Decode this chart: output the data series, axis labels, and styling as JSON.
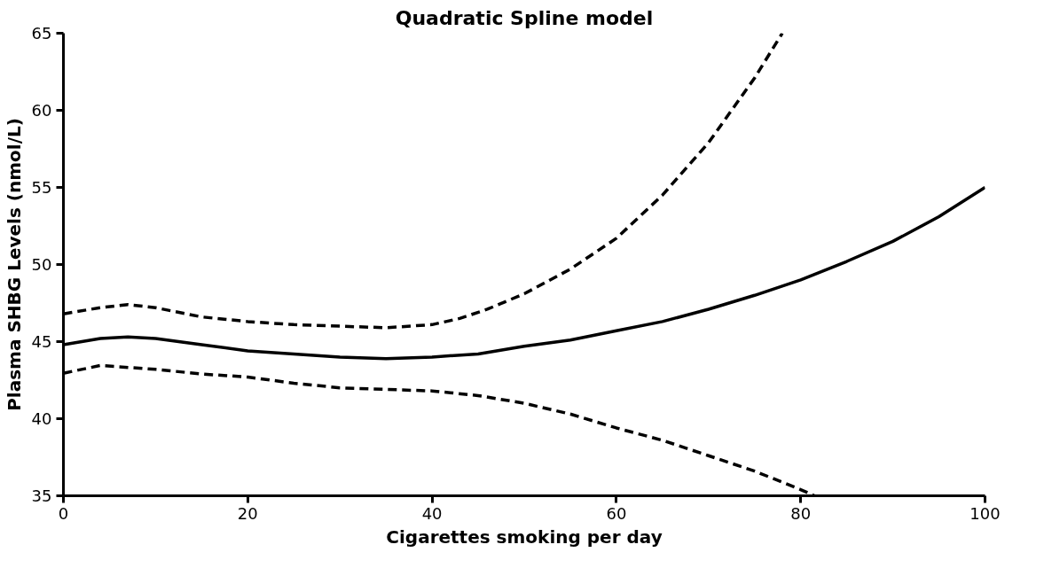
{
  "chart_data": {
    "type": "line",
    "title": "Quadratic Spline model",
    "xlabel": "Cigarettes smoking per day",
    "ylabel": "Plasma SHBG Levels (nmol/L)",
    "xlim": [
      0,
      100
    ],
    "ylim": [
      35,
      65
    ],
    "xticks": [
      0,
      20,
      40,
      60,
      80,
      100
    ],
    "yticks": [
      35,
      40,
      45,
      50,
      55,
      60,
      65
    ],
    "grid": false,
    "marker": "none",
    "series": [
      {
        "color": "#000000",
        "line_style": "solid",
        "x": [
          0,
          4,
          7,
          10,
          15,
          20,
          25,
          30,
          35,
          40,
          45,
          50,
          55,
          60,
          65,
          70,
          75,
          80,
          85,
          90,
          95,
          100
        ],
        "values": [
          44.8,
          45.2,
          45.3,
          45.2,
          44.8,
          44.4,
          44.2,
          44.0,
          43.9,
          44.0,
          44.2,
          44.7,
          45.1,
          45.7,
          46.3,
          47.1,
          48.0,
          49.0,
          50.2,
          51.5,
          53.1,
          55.0
        ]
      },
      {
        "color": "#000000",
        "line_style": "dashed",
        "x": [
          0,
          4,
          7,
          10,
          15,
          20,
          25,
          30,
          35,
          40,
          43,
          46,
          50,
          55,
          60,
          65,
          70,
          75,
          78
        ],
        "values": [
          46.8,
          47.2,
          47.4,
          47.2,
          46.6,
          46.3,
          46.1,
          46.0,
          45.9,
          46.1,
          46.5,
          47.1,
          48.1,
          49.7,
          51.7,
          54.5,
          57.9,
          62.1,
          65.0
        ]
      },
      {
        "color": "#000000",
        "line_style": "dashed",
        "x": [
          0,
          4,
          10,
          15,
          20,
          25,
          30,
          35,
          40,
          45,
          50,
          55,
          60,
          65,
          70,
          75,
          80,
          81.5
        ],
        "values": [
          42.95,
          43.45,
          43.2,
          42.9,
          42.7,
          42.3,
          42.0,
          41.9,
          41.8,
          41.5,
          41.0,
          40.3,
          39.4,
          38.6,
          37.6,
          36.6,
          35.4,
          35.0
        ]
      }
    ]
  }
}
